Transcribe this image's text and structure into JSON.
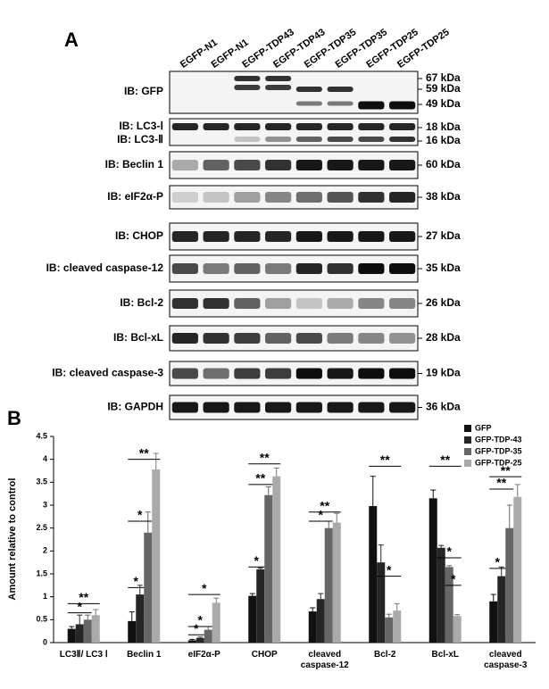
{
  "panel_a": {
    "label": "A",
    "lanes": [
      "EGFP-N1",
      "EGFP-N1",
      "EGFP-TDP43",
      "EGFP-TDP43",
      "EGFP-TDP35",
      "EGFP-TDP35",
      "EGFP-TDP25",
      "EGFP-TDP25"
    ],
    "blots": [
      {
        "labels": [
          "IB: GFP"
        ],
        "sizes": [
          "67 kDa",
          "59 kDa",
          "49 kDa"
        ]
      },
      {
        "labels": [
          "IB: LC3-Ⅰ",
          "IB: LC3-Ⅱ"
        ],
        "sizes": [
          "18 kDa",
          "16 kDa"
        ]
      },
      {
        "labels": [
          "IB: Beclin 1"
        ],
        "sizes": [
          "60 kDa"
        ]
      },
      {
        "labels": [
          "IB: eIF2α-P"
        ],
        "sizes": [
          "38 kDa"
        ]
      },
      {
        "labels": [
          "IB: CHOP"
        ],
        "sizes": [
          "27 kDa"
        ]
      },
      {
        "labels": [
          "IB: cleaved caspase-12"
        ],
        "sizes": [
          "35 kDa"
        ]
      },
      {
        "labels": [
          "IB: Bcl-2"
        ],
        "sizes": [
          "26 kDa"
        ]
      },
      {
        "labels": [
          "IB: Bcl-xL"
        ],
        "sizes": [
          "28 kDa"
        ]
      },
      {
        "labels": [
          "IB: cleaved caspase-3"
        ],
        "sizes": [
          "19 kDa"
        ]
      },
      {
        "labels": [
          "IB: GAPDH"
        ],
        "sizes": [
          "36 kDa"
        ]
      }
    ]
  },
  "chart_data": {
    "type": "bar",
    "panel_label": "B",
    "y_label": "Amount relative to control",
    "categories": [
      "LC3Ⅱ/ LC3 Ⅰ",
      "Beclin 1",
      "eIF2α-P",
      "CHOP",
      "cleaved caspase-12",
      "Bcl-2",
      "Bcl-xL",
      "cleaved caspase-3"
    ],
    "series": [
      {
        "name": "GFP",
        "color": "#111111",
        "values": [
          0.3,
          0.47,
          0.05,
          1.02,
          0.68,
          2.98,
          3.15,
          0.9
        ],
        "errors": [
          0.05,
          0.2,
          0.02,
          0.05,
          0.08,
          0.65,
          0.18,
          0.15
        ]
      },
      {
        "name": "GFP-TDP-43",
        "color": "#262626",
        "values": [
          0.4,
          1.05,
          0.1,
          1.6,
          0.95,
          1.75,
          2.07,
          1.45
        ],
        "errors": [
          0.2,
          0.2,
          0.02,
          0.03,
          0.12,
          0.38,
          0.05,
          0.2
        ]
      },
      {
        "name": "GFP-TDP-35",
        "color": "#666666",
        "values": [
          0.5,
          2.4,
          0.28,
          3.22,
          2.5,
          0.55,
          1.65,
          2.5
        ],
        "errors": [
          0.1,
          0.45,
          0.07,
          0.18,
          0.15,
          0.07,
          0.03,
          0.5
        ]
      },
      {
        "name": "GFP-TDP-25",
        "color": "#aaaaaa",
        "values": [
          0.6,
          3.78,
          0.87,
          3.63,
          2.62,
          0.7,
          0.58,
          3.18
        ],
        "errors": [
          0.12,
          0.35,
          0.1,
          0.18,
          0.2,
          0.15,
          0.03,
          0.27
        ]
      }
    ],
    "annotations": [
      {
        "text": "**",
        "category": 0,
        "from": 0,
        "to": 3,
        "y": 0.85
      },
      {
        "text": "*",
        "category": 0,
        "from": 0,
        "to": 2,
        "y": 0.65
      },
      {
        "text": "**",
        "category": 1,
        "from": 0,
        "to": 3,
        "y": 4.0
      },
      {
        "text": "*",
        "category": 1,
        "from": 0,
        "to": 2,
        "y": 2.65
      },
      {
        "text": "*",
        "category": 1,
        "from": 0,
        "to": 1,
        "y": 1.2
      },
      {
        "text": "*",
        "category": 2,
        "from": 0,
        "to": 3,
        "y": 1.05
      },
      {
        "text": "*",
        "category": 2,
        "from": 0,
        "to": 2,
        "y": 0.35
      },
      {
        "text": "*",
        "category": 2,
        "from": 0,
        "to": 1,
        "y": 0.17
      },
      {
        "text": "**",
        "category": 3,
        "from": 0,
        "to": 3,
        "y": 3.9
      },
      {
        "text": "**",
        "category": 3,
        "from": 0,
        "to": 2,
        "y": 3.45
      },
      {
        "text": "*",
        "category": 3,
        "from": 0,
        "to": 1,
        "y": 1.65
      },
      {
        "text": "**",
        "category": 4,
        "from": 0,
        "to": 3,
        "y": 2.85
      },
      {
        "text": "*",
        "category": 4,
        "from": 0,
        "to": 2,
        "y": 2.65
      },
      {
        "text": "**",
        "category": 5,
        "from": 0,
        "to": 3,
        "y": 3.85
      },
      {
        "text": "*",
        "category": 5,
        "from": 1,
        "to": 3,
        "y": 1.45
      },
      {
        "text": "**",
        "category": 6,
        "from": 0,
        "to": 3,
        "y": 3.85
      },
      {
        "text": "*",
        "category": 6,
        "from": 1,
        "to": 3,
        "y": 1.85
      },
      {
        "text": "*",
        "category": 6,
        "from": 2,
        "to": 3,
        "y": 1.25
      },
      {
        "text": "**",
        "category": 7,
        "from": 0,
        "to": 3,
        "y": 3.62
      },
      {
        "text": "**",
        "category": 7,
        "from": 0,
        "to": 2,
        "y": 3.35
      },
      {
        "text": "*",
        "category": 7,
        "from": 0,
        "to": 1,
        "y": 1.62
      }
    ],
    "ylim": [
      0,
      4.5
    ],
    "yticks": [
      0,
      0.5,
      1,
      1.5,
      2,
      2.5,
      3,
      3.5,
      4,
      4.5
    ],
    "legend": "upper right"
  }
}
